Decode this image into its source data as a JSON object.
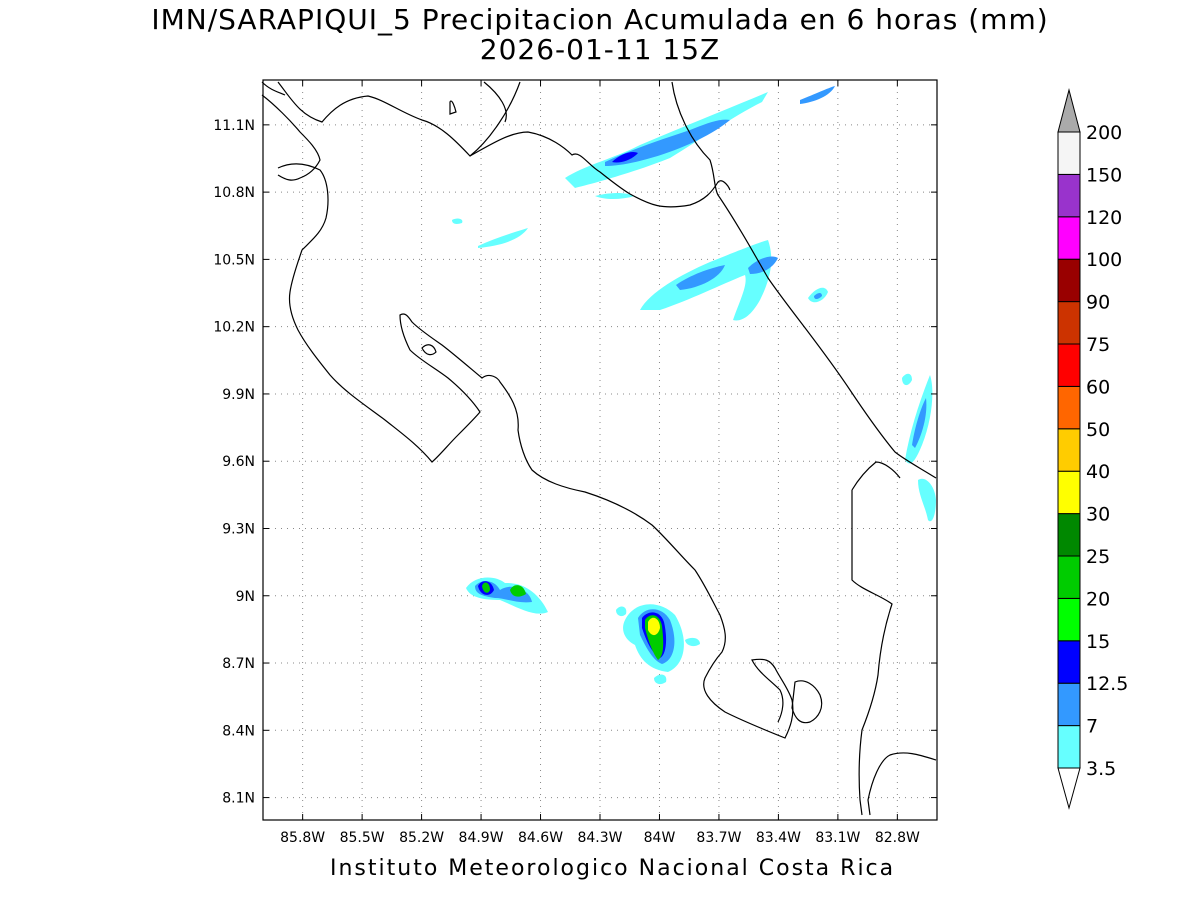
{
  "title": {
    "line1": "IMN/SARAPIQUI_5 Precipitacion Acumulada en 6 horas (mm)",
    "line2": "2026-01-11 15Z"
  },
  "footer": "Instituto Meteorologico Nacional Costa Rica",
  "map": {
    "lon_range": [
      -86.0,
      -82.6
    ],
    "lat_range": [
      8.0,
      11.3
    ],
    "lon_ticks": [
      {
        "value": -85.8,
        "label": "85.8W"
      },
      {
        "value": -85.5,
        "label": "85.5W"
      },
      {
        "value": -85.2,
        "label": "85.2W"
      },
      {
        "value": -84.9,
        "label": "84.9W"
      },
      {
        "value": -84.6,
        "label": "84.6W"
      },
      {
        "value": -84.3,
        "label": "84.3W"
      },
      {
        "value": -84.0,
        "label": "84W"
      },
      {
        "value": -83.7,
        "label": "83.7W"
      },
      {
        "value": -83.4,
        "label": "83.4W"
      },
      {
        "value": -83.1,
        "label": "83.1W"
      },
      {
        "value": -82.8,
        "label": "82.8W"
      }
    ],
    "lat_ticks": [
      {
        "value": 8.1,
        "label": "8.1N"
      },
      {
        "value": 8.4,
        "label": "8.4N"
      },
      {
        "value": 8.7,
        "label": "8.7N"
      },
      {
        "value": 9.0,
        "label": "9N"
      },
      {
        "value": 9.3,
        "label": "9.3N"
      },
      {
        "value": 9.6,
        "label": "9.6N"
      },
      {
        "value": 9.9,
        "label": "9.9N"
      },
      {
        "value": 10.2,
        "label": "10.2N"
      },
      {
        "value": 10.5,
        "label": "10.5N"
      },
      {
        "value": 10.8,
        "label": "10.8N"
      },
      {
        "value": 11.1,
        "label": "11.1N"
      }
    ],
    "grid": true,
    "coast_color": "#000000"
  },
  "colorbar": {
    "levels": [
      {
        "label": "3.5",
        "color": "#66ffff"
      },
      {
        "label": "7",
        "color": "#3399ff"
      },
      {
        "label": "12.5",
        "color": "#0000ff"
      },
      {
        "label": "15",
        "color": "#00ff00"
      },
      {
        "label": "20",
        "color": "#00cc00"
      },
      {
        "label": "25",
        "color": "#008800"
      },
      {
        "label": "30",
        "color": "#ffff00"
      },
      {
        "label": "40",
        "color": "#ffcc00"
      },
      {
        "label": "50",
        "color": "#ff6600"
      },
      {
        "label": "60",
        "color": "#ff0000"
      },
      {
        "label": "75",
        "color": "#cc3300"
      },
      {
        "label": "90",
        "color": "#990000"
      },
      {
        "label": "100",
        "color": "#ff00ff"
      },
      {
        "label": "120",
        "color": "#9933cc"
      },
      {
        "label": "150",
        "color": "#f5f5f5"
      },
      {
        "label": "200",
        "color": "#aaaaaa"
      }
    ]
  }
}
